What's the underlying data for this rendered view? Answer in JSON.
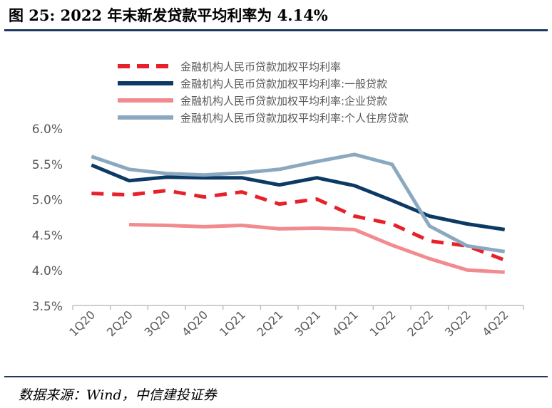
{
  "header": {
    "title": "图 25: 2022 年末新发贷款平均利率为 4.14%"
  },
  "footer": {
    "source": "数据来源：Wind，中信建投证券"
  },
  "colors": {
    "rule": "#1f3a5f",
    "axis": "#bfbfbf",
    "text": "#595959"
  },
  "chart_data": {
    "type": "line",
    "title": "2022 年末新发贷款平均利率为 4.14%",
    "xlabel": "",
    "ylabel": "",
    "categories": [
      "1Q20",
      "2Q20",
      "3Q20",
      "4Q20",
      "1Q21",
      "2Q21",
      "3Q21",
      "4Q21",
      "1Q22",
      "2Q22",
      "3Q22",
      "4Q22"
    ],
    "ylim": [
      3.5,
      6.0
    ],
    "yticks": [
      "3.5%",
      "4.0%",
      "4.5%",
      "5.0%",
      "5.5%",
      "6.0%"
    ],
    "ytick_values": [
      3.5,
      4.0,
      4.5,
      5.0,
      5.5,
      6.0
    ],
    "grid": false,
    "legend_position": "top",
    "series": [
      {
        "name": "金融机构人民币贷款加权平均利率",
        "color": "#e8202a",
        "style": "dashed",
        "values": [
          5.08,
          5.06,
          5.12,
          5.03,
          5.1,
          4.93,
          5.0,
          4.76,
          4.65,
          4.41,
          4.34,
          4.14
        ]
      },
      {
        "name": "金融机构人民币贷款加权平均利率:一般贷款",
        "color": "#0d3a64",
        "style": "solid",
        "values": [
          5.48,
          5.26,
          5.31,
          5.3,
          5.3,
          5.2,
          5.3,
          5.19,
          4.98,
          4.76,
          4.65,
          4.57
        ]
      },
      {
        "name": "金融机构人民币贷款加权平均利率:企业贷款",
        "color": "#f28b8e",
        "style": "solid",
        "values": [
          null,
          4.64,
          4.63,
          4.61,
          4.63,
          4.58,
          4.59,
          4.57,
          4.35,
          4.16,
          4.0,
          3.97
        ]
      },
      {
        "name": "金融机构人民币贷款加权平均利率:个人住房贷款",
        "color": "#8aa9c0",
        "style": "solid",
        "values": [
          5.6,
          5.42,
          5.36,
          5.34,
          5.37,
          5.42,
          5.53,
          5.63,
          5.49,
          4.62,
          4.34,
          4.26
        ]
      }
    ]
  }
}
